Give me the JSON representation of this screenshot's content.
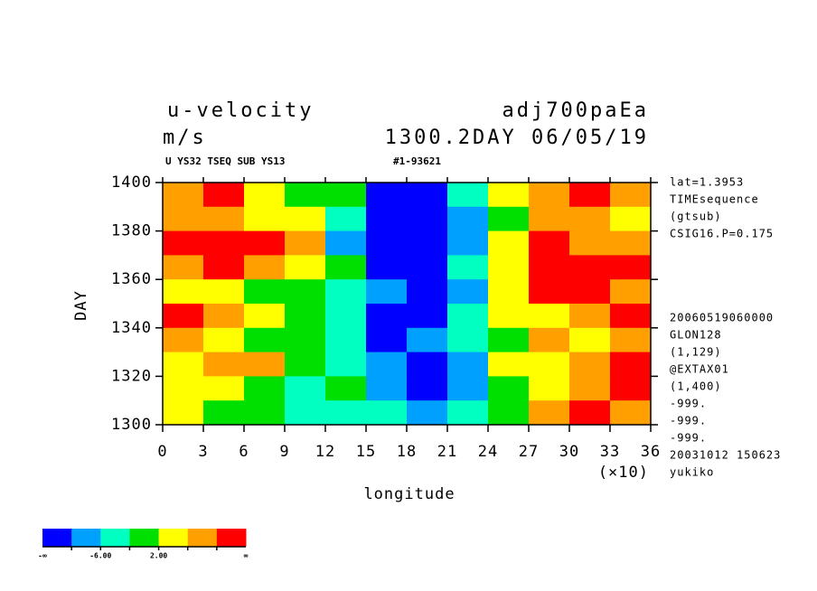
{
  "chart_data": {
    "type": "heatmap",
    "title": "u-velocity",
    "title_right": "adj700paEa",
    "units": "m/s",
    "subtitle_right": "1300.2DAY 06/05/19",
    "caption_left": "U YS32 TSEQ SUB YS13",
    "caption_mid": "#1-93621",
    "xlabel": "longitude",
    "xscale_label": "(×10)",
    "ylabel": "DAY",
    "xlim": [
      0,
      36
    ],
    "ylim": [
      1300,
      1400
    ],
    "xticks": [
      0,
      3,
      6,
      9,
      12,
      15,
      18,
      21,
      24,
      27,
      30,
      33,
      36
    ],
    "yticks": [
      1300,
      1320,
      1340,
      1360,
      1380,
      1400
    ],
    "x": [
      1.5,
      4.5,
      7.5,
      10.5,
      13.5,
      16.5,
      19.5,
      22.5,
      25.5,
      28.5,
      31.5,
      34.5
    ],
    "y": [
      1395,
      1385,
      1375,
      1365,
      1355,
      1345,
      1335,
      1325,
      1315,
      1305
    ],
    "values": [
      [
        6,
        10,
        4,
        0,
        -2,
        -12,
        -12,
        -4,
        4,
        6,
        10,
        8
      ],
      [
        8,
        6,
        4,
        2,
        -4,
        -12,
        -12,
        -8,
        0,
        8,
        6,
        4
      ],
      [
        12,
        14,
        12,
        6,
        -8,
        -12,
        -12,
        -8,
        2,
        10,
        8,
        6
      ],
      [
        8,
        12,
        6,
        2,
        0,
        -12,
        -12,
        -6,
        4,
        12,
        12,
        10
      ],
      [
        4,
        2,
        -2,
        0,
        -4,
        -10,
        -12,
        -8,
        4,
        10,
        12,
        8
      ],
      [
        12,
        6,
        2,
        -2,
        -4,
        -12,
        -12,
        -6,
        2,
        4,
        8,
        10
      ],
      [
        6,
        4,
        0,
        -2,
        -6,
        -12,
        -10,
        -4,
        0,
        6,
        4,
        6
      ],
      [
        2,
        6,
        8,
        0,
        -4,
        -8,
        -12,
        -10,
        2,
        4,
        6,
        12
      ],
      [
        4,
        2,
        0,
        -4,
        -2,
        -8,
        -12,
        -8,
        0,
        4,
        8,
        10
      ],
      [
        2,
        0,
        -2,
        -4,
        -6,
        -4,
        -10,
        -6,
        0,
        6,
        10,
        8
      ]
    ],
    "levels": [
      -10,
      -6,
      -2,
      2,
      6,
      10
    ],
    "colors": [
      "#0000ff",
      "#00a0ff",
      "#00ffc0",
      "#00e000",
      "#ffff00",
      "#ffa000",
      "#ff0000"
    ],
    "colorbar_ticks": [
      {
        "value": -6,
        "label": "-6.00"
      },
      {
        "value": 2,
        "label": "2.00"
      }
    ],
    "colorbar_min_label": "-∞",
    "colorbar_max_label": "∞",
    "side_notes_top": [
      "lat=1.3953",
      "TIMEsequence",
      "(gtsub)",
      "CSIG16.P=0.175"
    ],
    "side_notes_bottom": [
      "20060519060000",
      "GLON128",
      "(1,129)",
      "@EXTAX01",
      "(1,400)",
      "-999.",
      "-999.",
      "-999.",
      "20031012 150623",
      "yukiko"
    ]
  }
}
